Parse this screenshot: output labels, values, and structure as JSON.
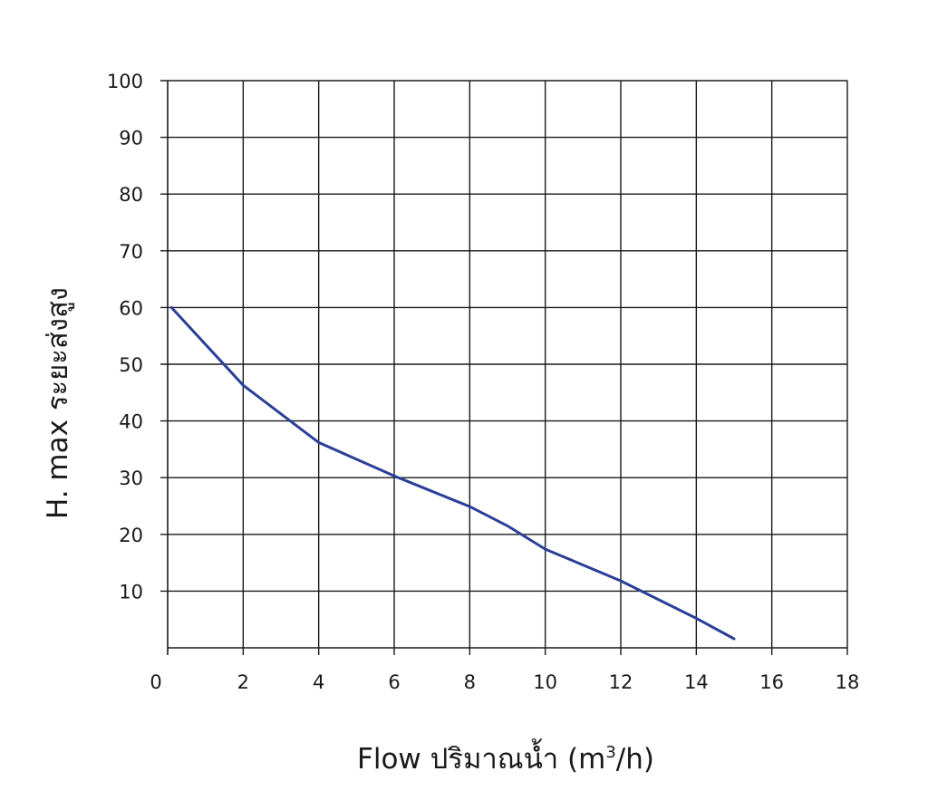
{
  "chart_data": {
    "type": "line",
    "title": "",
    "xlabel": "Flow  ปริมาณน้ำ",
    "xlabel_unit": {
      "prefix": "(m",
      "sup": "3",
      "suffix": "/h)"
    },
    "ylabel": "H. max  ระยะส่งสูง",
    "xlim": [
      0,
      18
    ],
    "ylim": [
      0,
      100
    ],
    "x_ticks": [
      0,
      2,
      4,
      6,
      8,
      10,
      12,
      14,
      16,
      18
    ],
    "y_ticks": [
      10,
      20,
      30,
      40,
      50,
      60,
      70,
      80,
      90,
      100
    ],
    "x_tick_labels": [
      "0",
      "2",
      "4",
      "6",
      "8",
      "10",
      "12",
      "14",
      "16",
      "18"
    ],
    "y_tick_labels": [
      "10",
      "20",
      "30",
      "40",
      "50",
      "60",
      "70",
      "80",
      "90",
      "100"
    ],
    "grid": true,
    "legend": "none",
    "series": [
      {
        "color": "#2a3f97",
        "x": [
          0.1,
          2,
          4,
          6,
          8,
          9,
          10,
          12,
          14,
          15
        ],
        "y": [
          60,
          46.3,
          36.2,
          30.3,
          24.9,
          21.5,
          17.4,
          11.8,
          5.2,
          1.6
        ]
      }
    ]
  }
}
